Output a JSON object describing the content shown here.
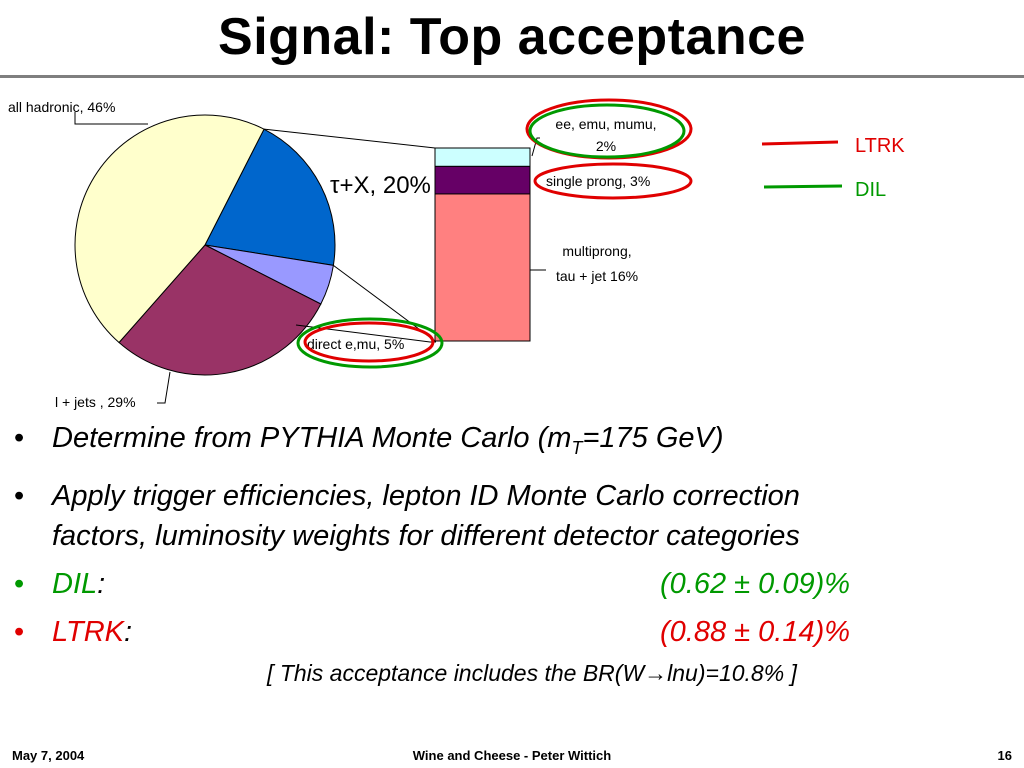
{
  "slide": {
    "title": "Signal: Top acceptance",
    "footer": {
      "date": "May 7, 2004",
      "center": "Wine and Cheese - Peter Wittich",
      "page": "16"
    }
  },
  "chart_data": {
    "type": "pie",
    "pie": {
      "slices": [
        {
          "label": "all hadronic, 46%",
          "value": 46,
          "color": "#ffffcc"
        },
        {
          "label": "τ+X, 20%",
          "value": 20,
          "color": "#0066cc"
        },
        {
          "label": "direct e,mu, 5%",
          "value": 5,
          "color": "#9999ff"
        },
        {
          "label": "l + jets , 29%",
          "value": 29,
          "color": "#993366"
        }
      ]
    },
    "breakdown": {
      "of": "τ+X, 20%",
      "segments": [
        {
          "label": "ee, emu, mumu, 2%",
          "line1": "ee, emu, mumu,",
          "line2": "2%",
          "value": 2,
          "color": "#ccffff"
        },
        {
          "label": "single prong, 3%",
          "value": 3,
          "color": "#660066"
        },
        {
          "label": "multiprong, tau + jet 16%",
          "line1": "multiprong,",
          "line2": "tau + jet 16%",
          "value": 16,
          "color": "#ff8080"
        }
      ]
    },
    "legend": [
      {
        "label": "LTRK",
        "color": "#e00000"
      },
      {
        "label": "DIL",
        "color": "#009900"
      }
    ],
    "legend_position": "top-right"
  },
  "bullets": {
    "b1": {
      "pre": "Determine from PYTHIA Monte Carlo (m",
      "sub": "T",
      "post": "=175 GeV)"
    },
    "b2": {
      "line1": "Apply trigger efficiencies, lepton ID Monte Carlo correction",
      "line2": "factors, luminosity weights for different detector categories"
    },
    "b3": {
      "label": "DIL",
      "colon": ":",
      "value": "(0.62 ± 0.09)%"
    },
    "b4": {
      "label": "LTRK",
      "colon": ":",
      "value": "(0.88 ± 0.14)%"
    },
    "bullet_char": "•"
  },
  "note": {
    "pre": "[ This acceptance includes the BR(W",
    "arrow": "→",
    "post": "lnu)=10.8% ]"
  }
}
